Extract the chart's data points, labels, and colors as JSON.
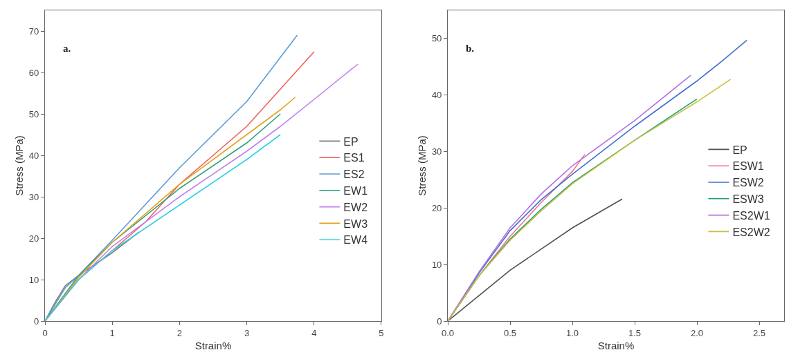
{
  "chart_data": [
    {
      "type": "line",
      "xlabel": "Strain%",
      "ylabel": "Stress (MPa)",
      "annotations": [
        "a."
      ],
      "xlim": [
        0,
        5
      ],
      "ylim": [
        0,
        75
      ],
      "xticks": [
        0,
        1,
        2,
        3,
        4,
        5
      ],
      "yticks": [
        0,
        10,
        20,
        30,
        40,
        50,
        60,
        70
      ],
      "legend": "right",
      "marker": "none",
      "line_style": "solid",
      "series": [
        {
          "name": "EP",
          "color": "#808080",
          "x": [
            0,
            0.15,
            0.3,
            0.5,
            1,
            1.4
          ],
          "values": [
            0,
            4.5,
            8.5,
            11,
            16.5,
            21.5
          ]
        },
        {
          "name": "ES1",
          "color": "#f0605a",
          "x": [
            0,
            0.5,
            1,
            1.5,
            2,
            2.5,
            3,
            3.5,
            4
          ],
          "values": [
            0,
            10,
            17,
            24,
            33,
            40,
            47,
            56,
            65
          ]
        },
        {
          "name": "ES2",
          "color": "#5b9bd5",
          "x": [
            0,
            0.3,
            0.5,
            1,
            2,
            3,
            3.75
          ],
          "values": [
            0,
            8,
            11,
            19.5,
            37,
            53,
            69
          ]
        },
        {
          "name": "EW1",
          "color": "#2ca07a",
          "x": [
            0,
            0.5,
            1,
            2,
            3,
            3.5
          ],
          "values": [
            0,
            11,
            19,
            32,
            43,
            50
          ]
        },
        {
          "name": "EW2",
          "color": "#c080f0",
          "x": [
            0,
            0.5,
            1,
            2,
            3,
            3.5,
            4,
            4.65
          ],
          "values": [
            0,
            10,
            18,
            30,
            41,
            47,
            53.5,
            62
          ]
        },
        {
          "name": "EW3",
          "color": "#e8a020",
          "x": [
            0,
            0.5,
            1,
            2,
            3,
            3.5,
            3.72
          ],
          "values": [
            0,
            10.5,
            19,
            33,
            45,
            51,
            54
          ]
        },
        {
          "name": "EW4",
          "color": "#30d0e0",
          "x": [
            0,
            0.5,
            1,
            2,
            3,
            3.5
          ],
          "values": [
            0,
            10,
            17,
            28,
            39,
            45
          ]
        }
      ]
    },
    {
      "type": "line",
      "xlabel": "Strain%",
      "ylabel": "Stress (MPa)",
      "annotations": [
        "b."
      ],
      "xlim": [
        0,
        2.7
      ],
      "ylim": [
        0,
        55
      ],
      "xticks": [
        {
          "value": 0,
          "label": "0.0"
        },
        0.5,
        {
          "value": 1,
          "label": "1.0"
        },
        1.5,
        {
          "value": 2,
          "label": "2.0"
        },
        2.5
      ],
      "yticks": [
        0,
        10,
        20,
        30,
        40,
        50
      ],
      "legend": "right",
      "marker": "none",
      "line_style": "solid",
      "series": [
        {
          "name": "EP",
          "color": "#505050",
          "x": [
            0,
            0.5,
            1,
            1.4
          ],
          "values": [
            0,
            9,
            16.5,
            21.6
          ]
        },
        {
          "name": "ESW1",
          "color": "#f07090",
          "x": [
            0,
            0.25,
            0.5,
            0.75,
            1,
            1.1
          ],
          "values": [
            0,
            8,
            15,
            21,
            26.5,
            29.5
          ]
        },
        {
          "name": "ESW2",
          "color": "#4070d0",
          "x": [
            0,
            0.25,
            0.5,
            0.75,
            1,
            1.5,
            2,
            2.2,
            2.4
          ],
          "values": [
            0,
            8.5,
            16,
            21.5,
            26,
            34.5,
            42.5,
            46,
            49.7
          ]
        },
        {
          "name": "ESW3",
          "color": "#20a070",
          "x": [
            0,
            0.25,
            0.5,
            0.75,
            1,
            1.5,
            2
          ],
          "values": [
            0,
            8,
            14.5,
            19.8,
            24.5,
            32,
            39.3
          ]
        },
        {
          "name": "ES2W1",
          "color": "#b070e0",
          "x": [
            0,
            0.25,
            0.5,
            0.75,
            1,
            1.5,
            1.95
          ],
          "values": [
            0,
            8.7,
            16.5,
            22.5,
            27.5,
            35.5,
            43.5
          ]
        },
        {
          "name": "ES2W2",
          "color": "#c8c040",
          "x": [
            0,
            0.25,
            0.5,
            0.75,
            1,
            1.5,
            2,
            2.27
          ],
          "values": [
            0,
            8,
            14.3,
            19.5,
            24.3,
            32,
            38.8,
            42.8
          ]
        }
      ]
    }
  ]
}
